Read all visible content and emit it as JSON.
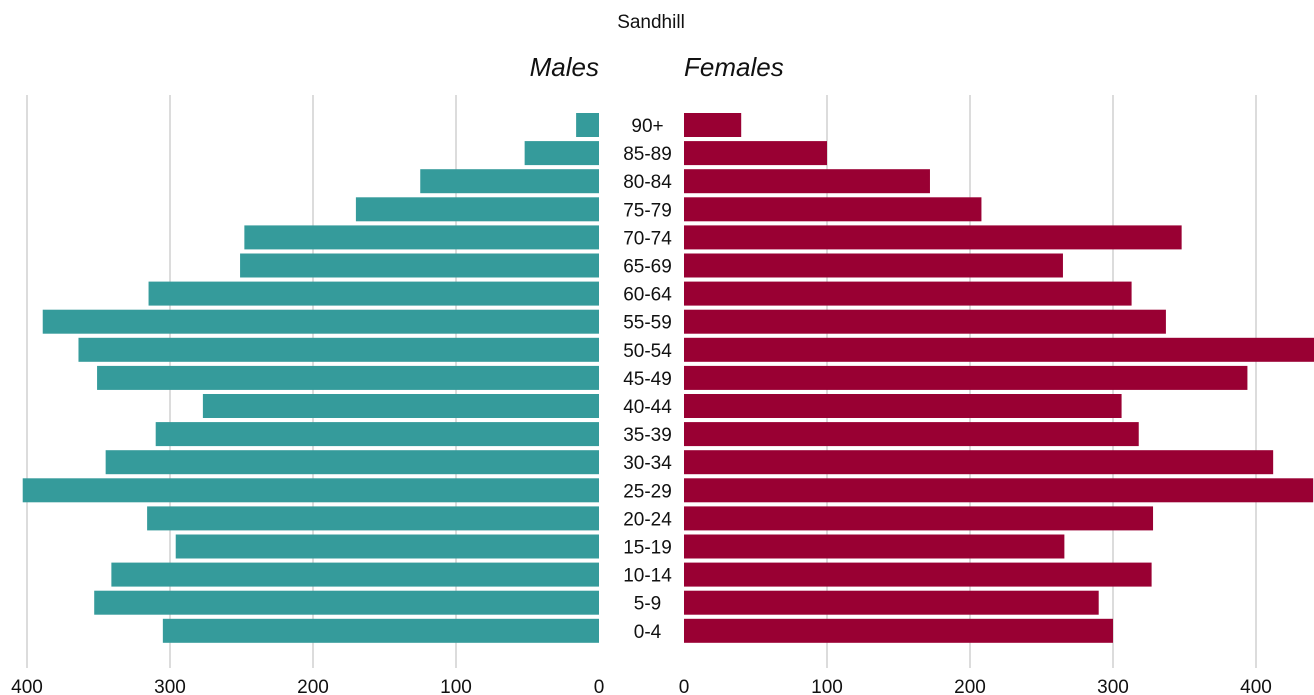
{
  "chart_data": {
    "type": "bar",
    "layout": "population-pyramid",
    "title": "Sandhill",
    "categories": [
      "0-4",
      "5-9",
      "10-14",
      "15-19",
      "20-24",
      "25-29",
      "30-34",
      "35-39",
      "40-44",
      "45-49",
      "50-54",
      "55-59",
      "60-64",
      "65-69",
      "70-74",
      "75-79",
      "80-84",
      "85-89",
      "90+"
    ],
    "series": [
      {
        "name": "Males",
        "side": "left",
        "color": "#359b9b",
        "values": [
          305,
          353,
          341,
          296,
          316,
          403,
          345,
          310,
          277,
          351,
          364,
          389,
          315,
          251,
          248,
          170,
          125,
          52,
          16
        ]
      },
      {
        "name": "Females",
        "side": "right",
        "color": "#990033",
        "values": [
          300,
          290,
          327,
          266,
          328,
          440,
          412,
          318,
          306,
          394,
          442,
          337,
          313,
          265,
          348,
          208,
          172,
          100,
          40
        ]
      }
    ],
    "male_axis": {
      "ticks": [
        400,
        300,
        200,
        100,
        0
      ],
      "lim": [
        0,
        402
      ]
    },
    "female_axis": {
      "ticks": [
        0,
        100,
        200,
        300,
        400
      ],
      "lim": [
        0,
        440
      ]
    },
    "grid": true,
    "legend": "none"
  }
}
